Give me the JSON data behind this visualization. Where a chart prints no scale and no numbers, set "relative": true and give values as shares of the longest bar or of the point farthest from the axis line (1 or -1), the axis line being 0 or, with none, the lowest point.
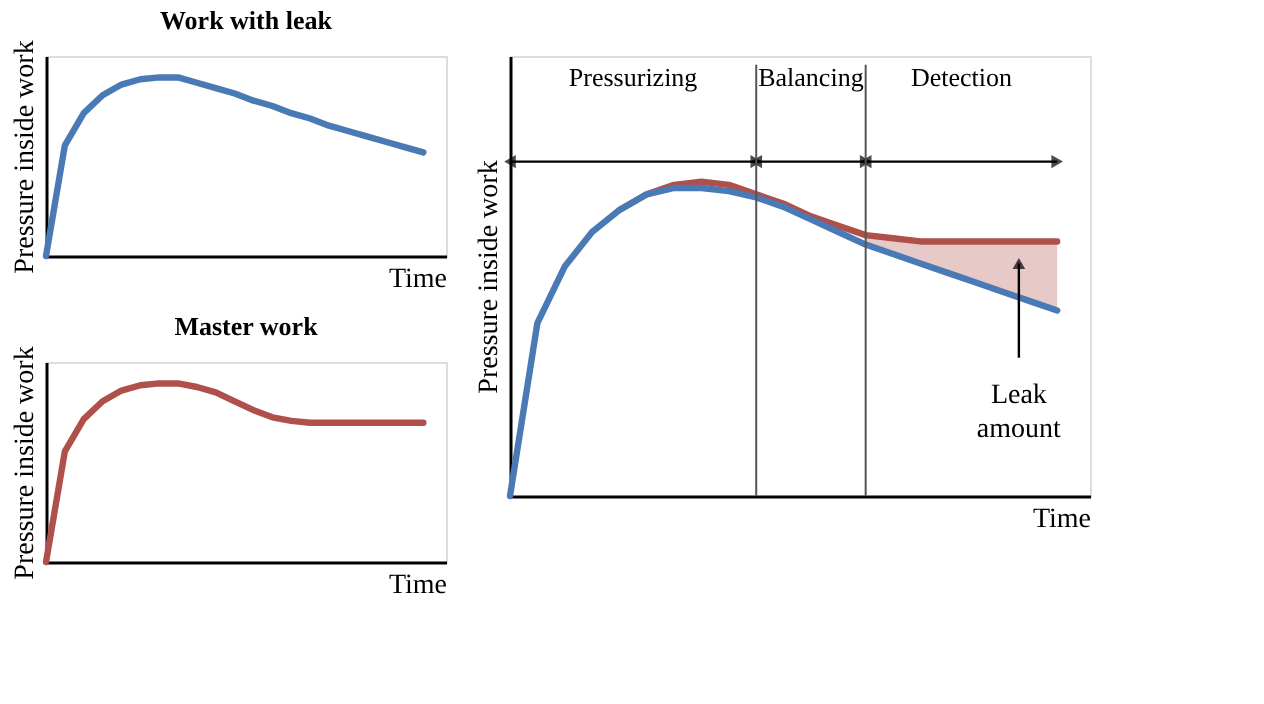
{
  "chart_data": [
    {
      "type": "line",
      "title": "Work with leak",
      "xlabel": "Time",
      "ylabel": "Pressure inside work",
      "relative": true,
      "tick_labels": false,
      "grid": false,
      "categories": [
        null,
        null,
        null,
        null,
        null,
        null,
        null,
        null,
        null,
        null,
        null,
        null,
        null,
        null,
        null,
        null,
        null,
        null,
        null,
        null,
        null
      ],
      "series": [
        {
          "color": "#4a7ab5",
          "values": [
            0,
            0.62,
            0.8,
            0.9,
            0.96,
            0.99,
            1,
            1,
            0.97,
            0.94,
            0.91,
            0.87,
            0.84,
            0.8,
            0.77,
            0.73,
            0.7,
            0.67,
            0.64,
            0.61,
            0.58
          ]
        }
      ]
    },
    {
      "type": "line",
      "title": "Master work",
      "xlabel": "Time",
      "ylabel": "Pressure inside work",
      "relative": true,
      "tick_labels": false,
      "grid": false,
      "categories": [
        null,
        null,
        null,
        null,
        null,
        null,
        null,
        null,
        null,
        null,
        null,
        null,
        null,
        null,
        null,
        null,
        null,
        null,
        null,
        null,
        null
      ],
      "series": [
        {
          "color": "#b0504a",
          "values": [
            0,
            0.62,
            0.8,
            0.9,
            0.96,
            0.99,
            1,
            1,
            0.98,
            0.95,
            0.9,
            0.85,
            0.81,
            0.79,
            0.78,
            0.78,
            0.78,
            0.78,
            0.78,
            0.78,
            0.78
          ]
        }
      ]
    },
    {
      "type": "line",
      "xlabel": "Time",
      "ylabel": "Pressure inside work",
      "relative": true,
      "tick_labels": false,
      "grid": false,
      "categories": [
        null,
        null,
        null,
        null,
        null,
        null,
        null,
        null,
        null,
        null,
        null,
        null,
        null,
        null,
        null,
        null,
        null,
        null,
        null,
        null,
        null
      ],
      "series": [
        {
          "color": "#b0504a",
          "values": [
            null,
            null,
            null,
            null,
            0.91,
            0.96,
            0.99,
            1,
            0.99,
            0.96,
            0.93,
            0.89,
            0.86,
            0.83,
            0.82,
            0.81,
            0.81,
            0.81,
            0.81,
            0.81,
            0.81
          ],
          "upper": [
            null,
            null,
            null,
            null,
            null,
            null,
            null,
            null,
            null,
            null,
            null,
            null,
            null,
            0.83,
            0.82,
            0.81,
            0.81,
            0.81,
            0.81,
            0.81,
            0.81
          ],
          "lower": [
            null,
            null,
            null,
            null,
            null,
            null,
            null,
            null,
            null,
            null,
            null,
            null,
            null,
            0.8,
            0.77,
            0.74,
            0.71,
            0.68,
            0.65,
            0.62,
            0.59
          ]
        },
        {
          "color": "#4a7ab5",
          "values": [
            0,
            0.55,
            0.73,
            0.84,
            0.91,
            0.96,
            0.98,
            0.98,
            0.97,
            0.95,
            0.92,
            0.88,
            0.84,
            0.8,
            0.77,
            0.74,
            0.71,
            0.68,
            0.65,
            0.62,
            0.59
          ]
        }
      ],
      "annotations": [
        "Pressurizing",
        "Balancing",
        "Detection",
        "Leak amount"
      ]
    }
  ]
}
